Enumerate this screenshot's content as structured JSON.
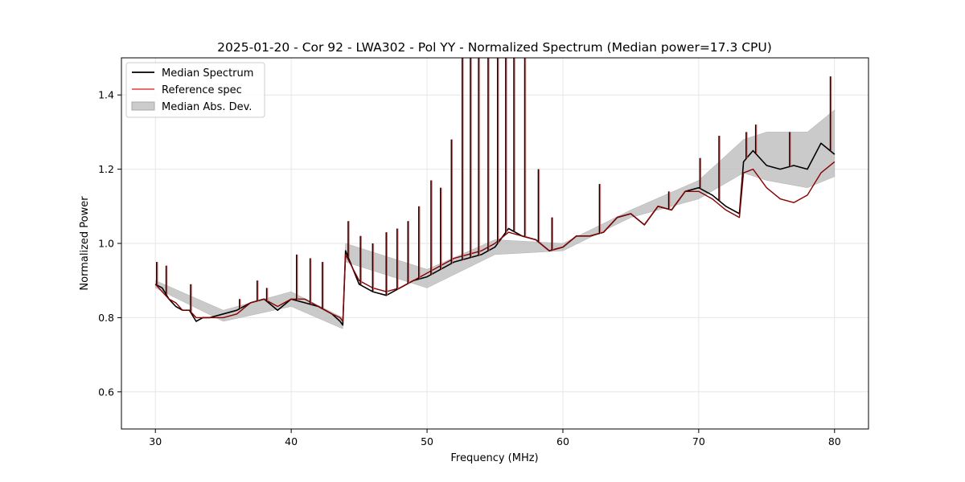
{
  "chart_data": {
    "type": "line",
    "title": "2025-01-20 - Cor 92 - LWA302 - Pol YY - Normalized Spectrum (Median power=17.3 CPU)",
    "xlabel": "Frequency (MHz)",
    "ylabel": "Normalized Power",
    "xlim": [
      27.5,
      82.5
    ],
    "ylim": [
      0.5,
      1.5
    ],
    "xticks": [
      30,
      40,
      50,
      60,
      70,
      80
    ],
    "xtick_labels": [
      "30",
      "40",
      "50",
      "60",
      "70",
      "80"
    ],
    "yticks": [
      0.6,
      0.8,
      1.0,
      1.2,
      1.4
    ],
    "ytick_labels": [
      "0.6",
      "0.8",
      "1.0",
      "1.2",
      "1.4"
    ],
    "grid": true,
    "legend_position": "top-left",
    "colors": {
      "median": "#000000",
      "reference": "#e8595a",
      "reference_overlap": "#8b0000",
      "mad": "#bdbdbd"
    },
    "series": [
      {
        "name": "Median Spectrum",
        "x": [
          30,
          30.5,
          31,
          31.5,
          32,
          32.5,
          33,
          33.5,
          34,
          35,
          36,
          37,
          38,
          39,
          40,
          41,
          42,
          43,
          43.6,
          43.8,
          44,
          45,
          46,
          47,
          48,
          49,
          50,
          51,
          52,
          53,
          54,
          55,
          56,
          57,
          58,
          59,
          60,
          61,
          62,
          63,
          64,
          65,
          66,
          67,
          68,
          69,
          70,
          71,
          72,
          73,
          73.3,
          74,
          75,
          76,
          77,
          78,
          79,
          80
        ],
        "values": [
          0.89,
          0.88,
          0.85,
          0.83,
          0.82,
          0.82,
          0.79,
          0.8,
          0.8,
          0.81,
          0.82,
          0.84,
          0.85,
          0.82,
          0.85,
          0.84,
          0.83,
          0.81,
          0.79,
          0.78,
          0.98,
          0.89,
          0.87,
          0.86,
          0.88,
          0.9,
          0.91,
          0.93,
          0.95,
          0.96,
          0.97,
          0.99,
          1.04,
          1.02,
          1.01,
          0.98,
          0.99,
          1.02,
          1.02,
          1.03,
          1.07,
          1.08,
          1.05,
          1.1,
          1.09,
          1.14,
          1.15,
          1.13,
          1.1,
          1.08,
          1.22,
          1.25,
          1.21,
          1.2,
          1.21,
          1.2,
          1.27,
          1.24
        ]
      },
      {
        "name": "Reference spec",
        "x": [
          30,
          30.5,
          31,
          31.5,
          32,
          32.5,
          33,
          33.5,
          34,
          35,
          36,
          37,
          38,
          39,
          40,
          41,
          42,
          43,
          43.6,
          43.8,
          44,
          45,
          46,
          47,
          48,
          49,
          50,
          51,
          52,
          53,
          54,
          55,
          56,
          57,
          58,
          59,
          60,
          61,
          62,
          63,
          64,
          65,
          66,
          67,
          68,
          69,
          70,
          71,
          72,
          73,
          73.3,
          74,
          75,
          76,
          77,
          78,
          79,
          80
        ],
        "values": [
          0.89,
          0.87,
          0.85,
          0.84,
          0.82,
          0.82,
          0.8,
          0.8,
          0.8,
          0.8,
          0.81,
          0.84,
          0.85,
          0.83,
          0.85,
          0.85,
          0.83,
          0.81,
          0.8,
          0.79,
          0.97,
          0.9,
          0.88,
          0.87,
          0.88,
          0.9,
          0.92,
          0.94,
          0.96,
          0.97,
          0.98,
          1.0,
          1.03,
          1.02,
          1.01,
          0.98,
          0.99,
          1.02,
          1.02,
          1.03,
          1.07,
          1.08,
          1.05,
          1.1,
          1.09,
          1.14,
          1.14,
          1.12,
          1.09,
          1.07,
          1.19,
          1.2,
          1.15,
          1.12,
          1.11,
          1.13,
          1.19,
          1.22
        ]
      },
      {
        "name": "Median Abs. Dev.",
        "x": [
          30,
          35,
          40,
          43.8,
          44,
          50,
          55,
          60,
          65,
          70,
          73.3,
          75,
          78,
          80
        ],
        "lower": [
          0.88,
          0.79,
          0.83,
          0.77,
          0.95,
          0.88,
          0.97,
          0.98,
          1.07,
          1.12,
          1.19,
          1.17,
          1.15,
          1.18
        ],
        "upper": [
          0.9,
          0.82,
          0.87,
          0.8,
          1.0,
          0.93,
          1.01,
          1.0,
          1.09,
          1.17,
          1.28,
          1.3,
          1.3,
          1.36
        ]
      }
    ],
    "spikes": [
      {
        "x": 30.1,
        "value": 0.95
      },
      {
        "x": 30.8,
        "value": 0.94
      },
      {
        "x": 32.6,
        "value": 0.89
      },
      {
        "x": 36.2,
        "value": 0.85
      },
      {
        "x": 37.5,
        "value": 0.9
      },
      {
        "x": 38.2,
        "value": 0.88
      },
      {
        "x": 40.4,
        "value": 0.97
      },
      {
        "x": 41.4,
        "value": 0.96
      },
      {
        "x": 42.3,
        "value": 0.95
      },
      {
        "x": 44.2,
        "value": 1.06
      },
      {
        "x": 45.1,
        "value": 1.02
      },
      {
        "x": 46.0,
        "value": 1.0
      },
      {
        "x": 47.0,
        "value": 1.03
      },
      {
        "x": 47.8,
        "value": 1.04
      },
      {
        "x": 48.6,
        "value": 1.06
      },
      {
        "x": 49.4,
        "value": 1.1
      },
      {
        "x": 50.3,
        "value": 1.17
      },
      {
        "x": 51.0,
        "value": 1.15
      },
      {
        "x": 51.8,
        "value": 1.28
      },
      {
        "x": 52.6,
        "value": 1.5
      },
      {
        "x": 53.2,
        "value": 1.5
      },
      {
        "x": 53.8,
        "value": 1.5
      },
      {
        "x": 54.5,
        "value": 1.5
      },
      {
        "x": 55.2,
        "value": 1.5
      },
      {
        "x": 55.8,
        "value": 1.5
      },
      {
        "x": 56.4,
        "value": 1.5
      },
      {
        "x": 57.2,
        "value": 1.5
      },
      {
        "x": 58.2,
        "value": 1.2
      },
      {
        "x": 59.2,
        "value": 1.07
      },
      {
        "x": 62.7,
        "value": 1.16
      },
      {
        "x": 67.8,
        "value": 1.14
      },
      {
        "x": 70.1,
        "value": 1.23
      },
      {
        "x": 71.5,
        "value": 1.29
      },
      {
        "x": 73.5,
        "value": 1.3
      },
      {
        "x": 74.2,
        "value": 1.32
      },
      {
        "x": 76.7,
        "value": 1.3
      },
      {
        "x": 79.7,
        "value": 1.45
      }
    ]
  }
}
